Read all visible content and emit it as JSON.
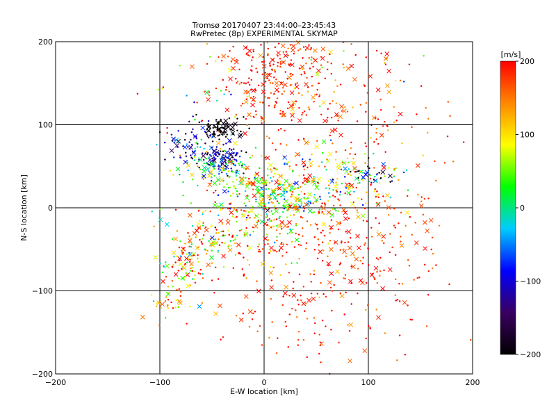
{
  "chart_data": {
    "type": "scatter",
    "title": "Tromsø 20170407 23:44:00–23:45:43",
    "subtitle": "RwPretec (8p) EXPERIMENTAL SKYMAP",
    "xlabel": "E-W location [km]",
    "ylabel": "N-S location [km]",
    "xlim": [
      -200,
      200
    ],
    "ylim": [
      -200,
      200
    ],
    "x_ticks": [
      -200,
      -100,
      0,
      100,
      200
    ],
    "y_ticks": [
      -200,
      -100,
      0,
      100,
      200
    ],
    "grid": true,
    "colorbar": {
      "label": "[m/s]",
      "range": [
        -200,
        200
      ],
      "ticks": [
        200,
        100,
        0,
        -100,
        -200
      ],
      "colors": [
        "#000000",
        "#3a0060",
        "#0000ff",
        "#00ccff",
        "#00ff00",
        "#ffff00",
        "#ff8800",
        "#ff0000"
      ]
    },
    "markers": {
      "dot": "+",
      "cross": "x"
    },
    "clusters": [
      {
        "cx": 10,
        "cy": 160,
        "sx": 28,
        "sy": 28,
        "n": 220,
        "v": 185,
        "vs": 25
      },
      {
        "cx": 60,
        "cy": 120,
        "sx": 60,
        "sy": 55,
        "n": 200,
        "v": 175,
        "vs": 40
      },
      {
        "cx": -40,
        "cy": 95,
        "sx": 10,
        "sy": 6,
        "n": 90,
        "v": -190,
        "vs": 12
      },
      {
        "cx": -70,
        "cy": 78,
        "sx": 12,
        "sy": 14,
        "n": 70,
        "v": -110,
        "vs": 60
      },
      {
        "cx": -40,
        "cy": 60,
        "sx": 10,
        "sy": 10,
        "n": 100,
        "v": -120,
        "vs": 40
      },
      {
        "cx": -45,
        "cy": 45,
        "sx": 18,
        "sy": 10,
        "n": 90,
        "v": 40,
        "vs": 60
      },
      {
        "cx": 10,
        "cy": 15,
        "sx": 30,
        "sy": 20,
        "n": 220,
        "v": 30,
        "vs": 70
      },
      {
        "cx": 60,
        "cy": 30,
        "sx": 40,
        "sy": 25,
        "n": 170,
        "v": 110,
        "vs": 90
      },
      {
        "cx": 100,
        "cy": 40,
        "sx": 15,
        "sy": 10,
        "n": 50,
        "v": -80,
        "vs": 120
      },
      {
        "cx": -10,
        "cy": -25,
        "sx": 35,
        "sy": 25,
        "n": 180,
        "v": 130,
        "vs": 80
      },
      {
        "cx": 60,
        "cy": -50,
        "sx": 50,
        "sy": 40,
        "n": 200,
        "v": 185,
        "vs": 30
      },
      {
        "cx": -80,
        "cy": -70,
        "sx": 10,
        "sy": 12,
        "n": 70,
        "v": 100,
        "vs": 90
      },
      {
        "cx": -60,
        "cy": -40,
        "sx": 15,
        "sy": 20,
        "n": 60,
        "v": 120,
        "vs": 80
      },
      {
        "cx": -90,
        "cy": -115,
        "sx": 10,
        "sy": 12,
        "n": 30,
        "v": 120,
        "vs": 60
      },
      {
        "cx": 40,
        "cy": -130,
        "sx": 60,
        "sy": 35,
        "n": 90,
        "v": 185,
        "vs": 30
      },
      {
        "cx": 120,
        "cy": -50,
        "sx": 40,
        "sy": 40,
        "n": 60,
        "v": 185,
        "vs": 30
      },
      {
        "cx": -60,
        "cy": 150,
        "sx": 40,
        "sy": 30,
        "n": 25,
        "v": 50,
        "vs": 150
      },
      {
        "cx": 100,
        "cy": 150,
        "sx": 50,
        "sy": 30,
        "n": 25,
        "v": 150,
        "vs": 80
      }
    ]
  }
}
